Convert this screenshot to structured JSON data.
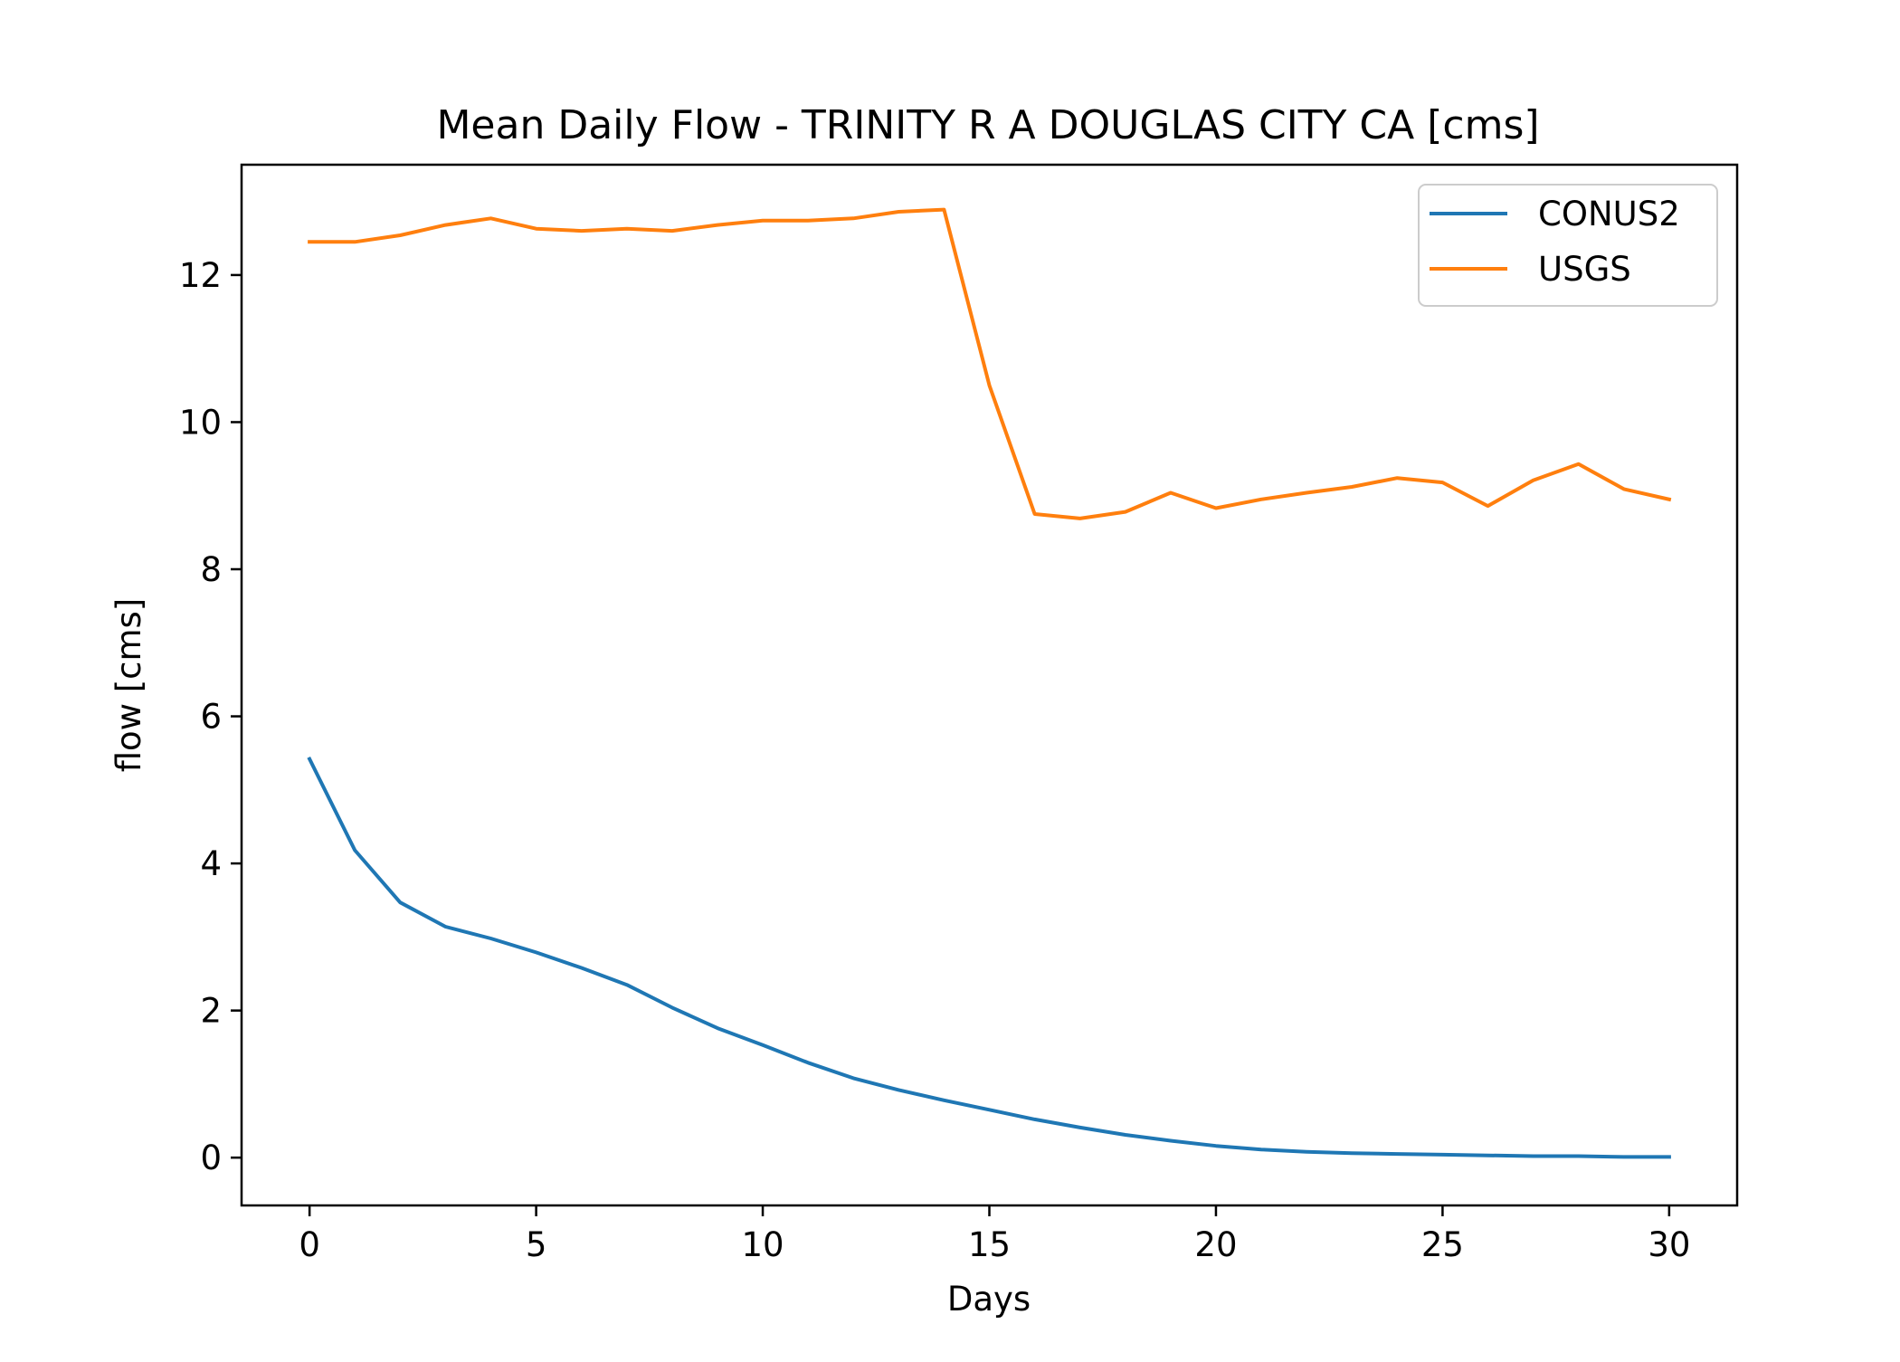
{
  "chart_data": {
    "type": "line",
    "title": "Mean Daily Flow - TRINITY R A DOUGLAS CITY CA [cms]",
    "xlabel": "Days",
    "ylabel": "flow [cms]",
    "xlim": [
      -1.5,
      31.5
    ],
    "ylim": [
      -0.65,
      13.5
    ],
    "xticks": [
      0,
      5,
      10,
      15,
      20,
      25,
      30
    ],
    "yticks": [
      0,
      2,
      4,
      6,
      8,
      10,
      12
    ],
    "grid": false,
    "legend_position": "upper right",
    "x": [
      0,
      1,
      2,
      3,
      4,
      5,
      6,
      7,
      8,
      9,
      10,
      11,
      12,
      13,
      14,
      15,
      16,
      17,
      18,
      19,
      20,
      21,
      22,
      23,
      24,
      25,
      26,
      27,
      28,
      29,
      30
    ],
    "series": [
      {
        "name": "CONUS2",
        "color": "#1f77b4",
        "values": [
          5.42,
          4.18,
          3.47,
          3.14,
          2.98,
          2.79,
          2.58,
          2.35,
          2.04,
          1.76,
          1.53,
          1.29,
          1.08,
          0.92,
          0.78,
          0.65,
          0.52,
          0.41,
          0.31,
          0.23,
          0.16,
          0.11,
          0.08,
          0.06,
          0.05,
          0.04,
          0.03,
          0.02,
          0.02,
          0.01,
          0.01
        ]
      },
      {
        "name": "USGS",
        "color": "#ff7f0e",
        "values": [
          12.45,
          12.45,
          12.54,
          12.68,
          12.77,
          12.63,
          12.6,
          12.63,
          12.6,
          12.68,
          12.74,
          12.74,
          12.77,
          12.86,
          12.89,
          10.5,
          8.75,
          8.69,
          8.78,
          9.04,
          8.83,
          8.95,
          9.04,
          9.12,
          9.24,
          9.18,
          8.86,
          9.21,
          9.43,
          9.09,
          8.95
        ]
      }
    ]
  }
}
